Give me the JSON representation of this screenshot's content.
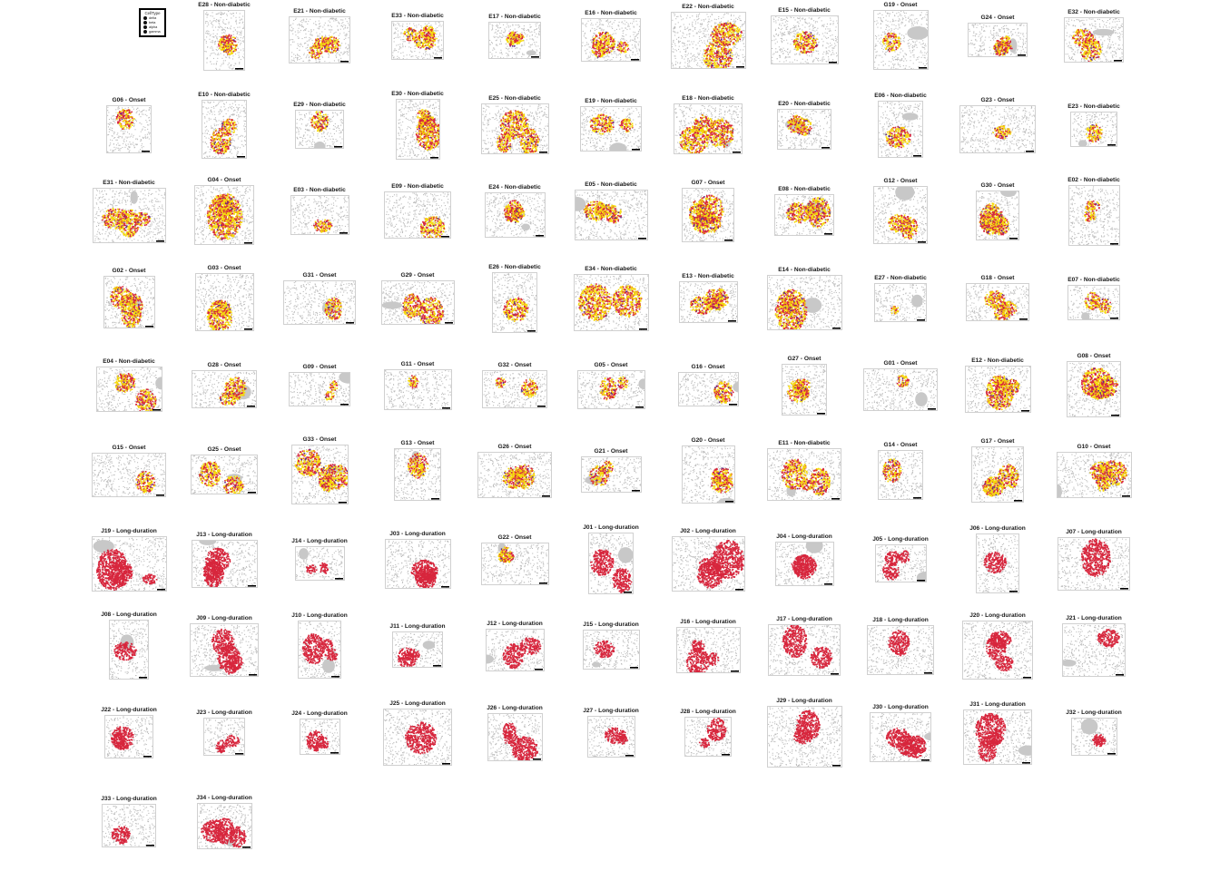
{
  "figure": {
    "legend": {
      "title": "CellType",
      "items": [
        {
          "label": "delta",
          "color": "#111111"
        },
        {
          "label": "beta",
          "color": "#111111"
        },
        {
          "label": "alpha",
          "color": "#111111"
        },
        {
          "label": "gamma",
          "color": "#111111"
        }
      ]
    },
    "cell_colors": {
      "background_cells": "#bdbdbd",
      "beta": "#f5d90a",
      "alpha": "#d7263d",
      "delta": "#5b2a86"
    }
  },
  "chart_data": {
    "type": "scatter",
    "panels": [
      {
        "id": "E28",
        "group": "Non-diabetic",
        "title": "E28 - Non-diabetic"
      },
      {
        "id": "E21",
        "group": "Non-diabetic",
        "title": "E21 - Non-diabetic"
      },
      {
        "id": "E33",
        "group": "Non-diabetic",
        "title": "E33 - Non-diabetic"
      },
      {
        "id": "E17",
        "group": "Non-diabetic",
        "title": "E17 - Non-diabetic"
      },
      {
        "id": "E16",
        "group": "Non-diabetic",
        "title": "E16 - Non-diabetic"
      },
      {
        "id": "E22",
        "group": "Non-diabetic",
        "title": "E22 - Non-diabetic"
      },
      {
        "id": "E15",
        "group": "Non-diabetic",
        "title": "E15 - Non-diabetic"
      },
      {
        "id": "G19",
        "group": "Onset",
        "title": "G19 - Onset"
      },
      {
        "id": "G24",
        "group": "Onset",
        "title": "G24 - Onset"
      },
      {
        "id": "E32",
        "group": "Non-diabetic",
        "title": "E32 - Non-diabetic"
      },
      {
        "id": "G06",
        "group": "Onset",
        "title": "G06 - Onset"
      },
      {
        "id": "E10",
        "group": "Non-diabetic",
        "title": "E10 - Non-diabetic"
      },
      {
        "id": "E29",
        "group": "Non-diabetic",
        "title": "E29 - Non-diabetic"
      },
      {
        "id": "E30",
        "group": "Non-diabetic",
        "title": "E30 - Non-diabetic"
      },
      {
        "id": "E25",
        "group": "Non-diabetic",
        "title": "E25 - Non-diabetic"
      },
      {
        "id": "E19",
        "group": "Non-diabetic",
        "title": "E19 - Non-diabetic"
      },
      {
        "id": "E18",
        "group": "Non-diabetic",
        "title": "E18 - Non-diabetic"
      },
      {
        "id": "E20",
        "group": "Non-diabetic",
        "title": "E20 - Non-diabetic"
      },
      {
        "id": "E06",
        "group": "Non-diabetic",
        "title": "E06 - Non-diabetic"
      },
      {
        "id": "G23",
        "group": "Onset",
        "title": "G23 - Onset"
      },
      {
        "id": "E23",
        "group": "Non-diabetic",
        "title": "E23 - Non-diabetic"
      },
      {
        "id": "E31",
        "group": "Non-diabetic",
        "title": "E31 - Non-diabetic"
      },
      {
        "id": "G04",
        "group": "Onset",
        "title": "G04 - Onset"
      },
      {
        "id": "E03",
        "group": "Non-diabetic",
        "title": "E03 - Non-diabetic"
      },
      {
        "id": "E09",
        "group": "Non-diabetic",
        "title": "E09 - Non-diabetic"
      },
      {
        "id": "E24",
        "group": "Non-diabetic",
        "title": "E24 - Non-diabetic"
      },
      {
        "id": "E05",
        "group": "Non-diabetic",
        "title": "E05 - Non-diabetic"
      },
      {
        "id": "G07",
        "group": "Onset",
        "title": "G07 - Onset"
      },
      {
        "id": "E08",
        "group": "Non-diabetic",
        "title": "E08 - Non-diabetic"
      },
      {
        "id": "G12",
        "group": "Onset",
        "title": "G12 - Onset"
      },
      {
        "id": "G30",
        "group": "Onset",
        "title": "G30 - Onset"
      },
      {
        "id": "E02",
        "group": "Non-diabetic",
        "title": "E02 - Non-diabetic"
      },
      {
        "id": "G02",
        "group": "Onset",
        "title": "G02 - Onset"
      },
      {
        "id": "G03",
        "group": "Onset",
        "title": "G03 - Onset"
      },
      {
        "id": "G31",
        "group": "Onset",
        "title": "G31 - Onset"
      },
      {
        "id": "G29",
        "group": "Onset",
        "title": "G29 - Onset"
      },
      {
        "id": "E26",
        "group": "Non-diabetic",
        "title": "E26 - Non-diabetic"
      },
      {
        "id": "E34",
        "group": "Non-diabetic",
        "title": "E34 - Non-diabetic"
      },
      {
        "id": "E13",
        "group": "Non-diabetic",
        "title": "E13 - Non-diabetic"
      },
      {
        "id": "E14",
        "group": "Non-diabetic",
        "title": "E14 - Non-diabetic"
      },
      {
        "id": "E27",
        "group": "Non-diabetic",
        "title": "E27 - Non-diabetic"
      },
      {
        "id": "G18",
        "group": "Onset",
        "title": "G18 - Onset"
      },
      {
        "id": "E07",
        "group": "Non-diabetic",
        "title": "E07 - Non-diabetic"
      },
      {
        "id": "E04",
        "group": "Non-diabetic",
        "title": "E04 - Non-diabetic"
      },
      {
        "id": "G28",
        "group": "Onset",
        "title": "G28 - Onset"
      },
      {
        "id": "G09",
        "group": "Onset",
        "title": "G09 - Onset"
      },
      {
        "id": "G11",
        "group": "Onset",
        "title": "G11 - Onset"
      },
      {
        "id": "G32",
        "group": "Onset",
        "title": "G32 - Onset"
      },
      {
        "id": "G05",
        "group": "Onset",
        "title": "G05 - Onset"
      },
      {
        "id": "G16",
        "group": "Onset",
        "title": "G16 - Onset"
      },
      {
        "id": "G27",
        "group": "Onset",
        "title": "G27 - Onset"
      },
      {
        "id": "G01",
        "group": "Onset",
        "title": "G01 - Onset"
      },
      {
        "id": "E12",
        "group": "Non-diabetic",
        "title": "E12 - Non-diabetic"
      },
      {
        "id": "G08",
        "group": "Onset",
        "title": "G08 - Onset"
      },
      {
        "id": "G15",
        "group": "Onset",
        "title": "G15 - Onset"
      },
      {
        "id": "G25",
        "group": "Onset",
        "title": "G25 - Onset"
      },
      {
        "id": "G33",
        "group": "Onset",
        "title": "G33 - Onset"
      },
      {
        "id": "G13",
        "group": "Onset",
        "title": "G13 - Onset"
      },
      {
        "id": "G26",
        "group": "Onset",
        "title": "G26 - Onset"
      },
      {
        "id": "G21",
        "group": "Onset",
        "title": "G21 - Onset"
      },
      {
        "id": "G20",
        "group": "Onset",
        "title": "G20 - Onset"
      },
      {
        "id": "E11",
        "group": "Non-diabetic",
        "title": "E11 - Non-diabetic"
      },
      {
        "id": "G14",
        "group": "Onset",
        "title": "G14 - Onset"
      },
      {
        "id": "G17",
        "group": "Onset",
        "title": "G17 - Onset"
      },
      {
        "id": "G10",
        "group": "Onset",
        "title": "G10 - Onset"
      },
      {
        "id": "J19",
        "group": "Long-duration",
        "title": "J19 - Long-duration"
      },
      {
        "id": "J13",
        "group": "Long-duration",
        "title": "J13 - Long-duration"
      },
      {
        "id": "J14",
        "group": "Long-duration",
        "title": "J14 - Long-duration"
      },
      {
        "id": "J03",
        "group": "Long-duration",
        "title": "J03 - Long-duration"
      },
      {
        "id": "G22",
        "group": "Onset",
        "title": "G22 - Onset"
      },
      {
        "id": "J01",
        "group": "Long-duration",
        "title": "J01 - Long-duration"
      },
      {
        "id": "J02",
        "group": "Long-duration",
        "title": "J02 - Long-duration"
      },
      {
        "id": "J04",
        "group": "Long-duration",
        "title": "J04 - Long-duration"
      },
      {
        "id": "J05",
        "group": "Long-duration",
        "title": "J05 - Long-duration"
      },
      {
        "id": "J06",
        "group": "Long-duration",
        "title": "J06 - Long-duration"
      },
      {
        "id": "J07",
        "group": "Long-duration",
        "title": "J07 - Long-duration"
      },
      {
        "id": "J08",
        "group": "Long-duration",
        "title": "J08 - Long-duration"
      },
      {
        "id": "J09",
        "group": "Long-duration",
        "title": "J09 - Long-duration"
      },
      {
        "id": "J10",
        "group": "Long-duration",
        "title": "J10 - Long-duration"
      },
      {
        "id": "J11",
        "group": "Long-duration",
        "title": "J11 - Long-duration"
      },
      {
        "id": "J12",
        "group": "Long-duration",
        "title": "J12 - Long-duration"
      },
      {
        "id": "J15",
        "group": "Long-duration",
        "title": "J15 - Long-duration"
      },
      {
        "id": "J16",
        "group": "Long-duration",
        "title": "J16 - Long-duration"
      },
      {
        "id": "J17",
        "group": "Long-duration",
        "title": "J17 - Long-duration"
      },
      {
        "id": "J18",
        "group": "Long-duration",
        "title": "J18 - Long-duration"
      },
      {
        "id": "J20",
        "group": "Long-duration",
        "title": "J20 - Long-duration"
      },
      {
        "id": "J21",
        "group": "Long-duration",
        "title": "J21 - Long-duration"
      },
      {
        "id": "J22",
        "group": "Long-duration",
        "title": "J22 - Long-duration"
      },
      {
        "id": "J23",
        "group": "Long-duration",
        "title": "J23 - Long-duration"
      },
      {
        "id": "J24",
        "group": "Long-duration",
        "title": "J24 - Long-duration"
      },
      {
        "id": "J25",
        "group": "Long-duration",
        "title": "J25 - Long-duration"
      },
      {
        "id": "J26",
        "group": "Long-duration",
        "title": "J26 - Long-duration"
      },
      {
        "id": "J27",
        "group": "Long-duration",
        "title": "J27 - Long-duration"
      },
      {
        "id": "J28",
        "group": "Long-duration",
        "title": "J28 - Long-duration"
      },
      {
        "id": "J29",
        "group": "Long-duration",
        "title": "J29 - Long-duration"
      },
      {
        "id": "J30",
        "group": "Long-duration",
        "title": "J30 - Long-duration"
      },
      {
        "id": "J31",
        "group": "Long-duration",
        "title": "J31 - Long-duration"
      },
      {
        "id": "J32",
        "group": "Long-duration",
        "title": "J32 - Long-duration"
      },
      {
        "id": "J33",
        "group": "Long-duration",
        "title": "J33 - Long-duration"
      },
      {
        "id": "J34",
        "group": "Long-duration",
        "title": "J34 - Long-duration"
      }
    ]
  }
}
